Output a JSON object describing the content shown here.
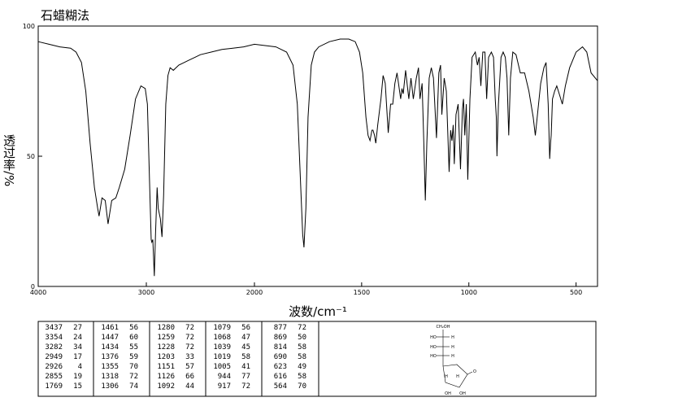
{
  "chart_data": {
    "type": "line",
    "title": "石蜡糊法",
    "x_label": "波数/cm⁻¹",
    "y_label": "透过率/%",
    "color": "#000000",
    "xlim": [
      4000,
      400
    ],
    "ylim": [
      0,
      100
    ],
    "xticks": [
      4000,
      3000,
      2000,
      1500,
      1000,
      500
    ],
    "yticks": [
      0,
      50,
      100
    ],
    "x": [
      4000,
      3900,
      3800,
      3700,
      3650,
      3600,
      3560,
      3520,
      3480,
      3450,
      3437,
      3410,
      3380,
      3354,
      3320,
      3282,
      3250,
      3200,
      3150,
      3100,
      3050,
      3010,
      2990,
      2970,
      2955,
      2949,
      2940,
      2926,
      2915,
      2900,
      2890,
      2870,
      2855,
      2840,
      2820,
      2800,
      2780,
      2750,
      2700,
      2650,
      2600,
      2550,
      2500,
      2400,
      2300,
      2200,
      2100,
      2000,
      1950,
      1900,
      1850,
      1820,
      1800,
      1785,
      1775,
      1769,
      1760,
      1750,
      1735,
      1720,
      1700,
      1650,
      1600,
      1560,
      1530,
      1510,
      1495,
      1480,
      1470,
      1461,
      1452,
      1447,
      1440,
      1434,
      1425,
      1410,
      1400,
      1390,
      1376,
      1365,
      1355,
      1345,
      1335,
      1318,
      1312,
      1306,
      1295,
      1280,
      1270,
      1259,
      1245,
      1235,
      1228,
      1218,
      1210,
      1203,
      1196,
      1185,
      1175,
      1165,
      1151,
      1140,
      1132,
      1126,
      1115,
      1105,
      1092,
      1085,
      1079,
      1073,
      1068,
      1060,
      1050,
      1039,
      1030,
      1025,
      1019,
      1012,
      1005,
      995,
      985,
      970,
      960,
      952,
      944,
      935,
      925,
      917,
      908,
      895,
      885,
      877,
      872,
      869,
      862,
      850,
      840,
      830,
      822,
      814,
      806,
      795,
      780,
      760,
      740,
      720,
      700,
      690,
      680,
      665,
      650,
      640,
      630,
      623,
      619,
      616,
      610,
      600,
      590,
      575,
      564,
      550,
      530,
      500,
      470,
      450,
      430,
      400
    ],
    "values": [
      94,
      93,
      92,
      91.5,
      90,
      86,
      75,
      55,
      38,
      30,
      27,
      34,
      33,
      24,
      33,
      34,
      38,
      45,
      58,
      72,
      77,
      76,
      70,
      40,
      18,
      17,
      18,
      4,
      20,
      38,
      30,
      26,
      19,
      35,
      70,
      81,
      84,
      83,
      85,
      86,
      87,
      88,
      89,
      90,
      91,
      91.5,
      92,
      93,
      92.5,
      92,
      90,
      85,
      70,
      40,
      20,
      15,
      30,
      65,
      85,
      90,
      92,
      94,
      95,
      95,
      94,
      90,
      82,
      65,
      58,
      56,
      60,
      60,
      58,
      55,
      62,
      72,
      81,
      78,
      59,
      70,
      70,
      78,
      82,
      72,
      76,
      74,
      83,
      72,
      80,
      72,
      80,
      84,
      72,
      78,
      55,
      33,
      55,
      80,
      84,
      80,
      57,
      82,
      85,
      66,
      80,
      75,
      44,
      60,
      56,
      62,
      47,
      66,
      70,
      45,
      68,
      72,
      58,
      70,
      41,
      72,
      88,
      90,
      85,
      88,
      77,
      90,
      90,
      72,
      88,
      90,
      88,
      72,
      65,
      50,
      70,
      88,
      90,
      88,
      80,
      58,
      80,
      90,
      89,
      82,
      82,
      75,
      65,
      58,
      66,
      78,
      84,
      86,
      70,
      49,
      55,
      58,
      72,
      75,
      77,
      73,
      70,
      77,
      84,
      90,
      92,
      90,
      82,
      79
    ]
  },
  "peak_table": {
    "columns": [
      [
        [
          3437,
          27
        ],
        [
          3354,
          24
        ],
        [
          3282,
          34
        ],
        [
          2949,
          17
        ],
        [
          2926,
          4
        ],
        [
          2855,
          19
        ],
        [
          1769,
          15
        ]
      ],
      [
        [
          1461,
          56
        ],
        [
          1447,
          60
        ],
        [
          1434,
          55
        ],
        [
          1376,
          59
        ],
        [
          1355,
          70
        ],
        [
          1318,
          72
        ],
        [
          1306,
          74
        ]
      ],
      [
        [
          1280,
          72
        ],
        [
          1259,
          72
        ],
        [
          1228,
          72
        ],
        [
          1203,
          33
        ],
        [
          1151,
          57
        ],
        [
          1126,
          66
        ],
        [
          1092,
          44
        ]
      ],
      [
        [
          1079,
          56
        ],
        [
          1068,
          47
        ],
        [
          1039,
          45
        ],
        [
          1019,
          58
        ],
        [
          1005,
          41
        ],
        [
          944,
          77
        ],
        [
          917,
          72
        ]
      ],
      [
        [
          877,
          72
        ],
        [
          869,
          50
        ],
        [
          814,
          58
        ],
        [
          690,
          58
        ],
        [
          623,
          49
        ],
        [
          616,
          58
        ],
        [
          564,
          70
        ]
      ]
    ]
  },
  "structure": {
    "labels": [
      "CH₂OH",
      "HO",
      "H",
      "HO",
      "H",
      "HO",
      "H",
      "O",
      "H",
      "H",
      "OH",
      "OH"
    ]
  }
}
